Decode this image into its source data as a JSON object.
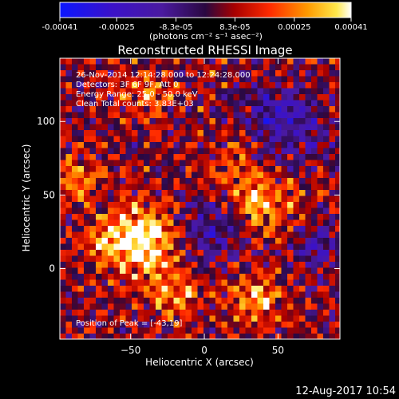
{
  "colorbar": {
    "tick_labels": [
      "-0.00041",
      "-0.00025",
      "-8.3e-05",
      "8.3e-05",
      "0.00025",
      "0.00041"
    ],
    "tick_values": [
      -0.00041,
      -0.00025,
      -8.3e-05,
      8.3e-05,
      0.00025,
      0.00041
    ],
    "range": [
      -0.00041,
      0.00041
    ],
    "units_label": "(photons cm⁻² s⁻¹ asec⁻²)"
  },
  "chart_data": {
    "type": "heatmap",
    "title": "Reconstructed RHESSI Image",
    "xlabel": "Heliocentric X (arcsec)",
    "ylabel": "Heliocentric Y (arcsec)",
    "xlim": [
      -98,
      92
    ],
    "ylim": [
      -48,
      143
    ],
    "x_ticks": [
      -50,
      0,
      50
    ],
    "y_ticks": [
      0,
      50,
      100
    ],
    "x_tick_labels": [
      "−50",
      "0",
      "50"
    ],
    "y_tick_labels": [
      "0",
      "50",
      "100"
    ],
    "annotations": [
      "26-Nov-2014 12:14:28.000 to 12:24:28.000",
      "Detectors: 3F 6F 9F, Att 0",
      "Energy Range: 25.0 - 50.0 keV",
      "Clean    Total counts: 3.83E+03"
    ],
    "peak_label": "Position of Peak = [-43,19]",
    "peak": [
      -43,
      19
    ],
    "colormap": "blue-purple-red-yellow-white"
  },
  "footer": {
    "timestamp": "12-Aug-2017 10:54"
  }
}
